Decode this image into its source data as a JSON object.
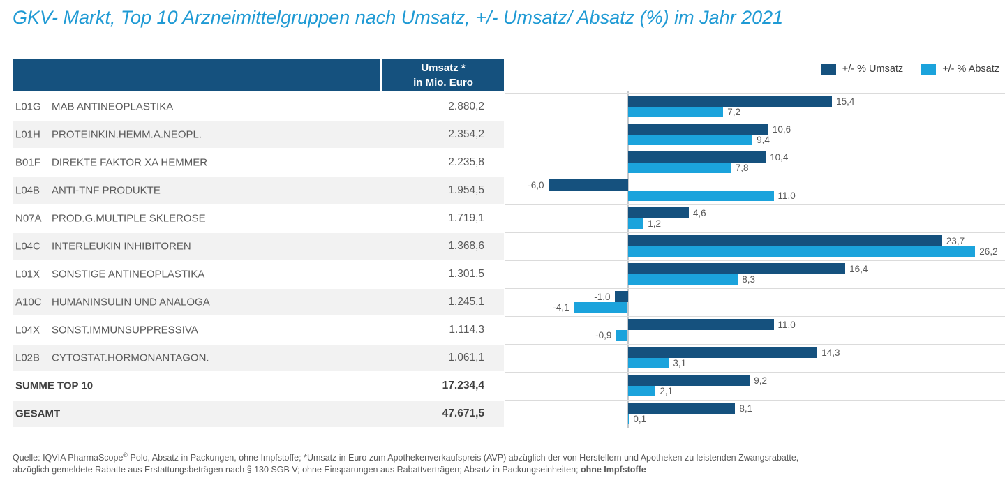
{
  "title": "GKV- Markt, Top 10 Arzneimittelgruppen nach Umsatz, +/- Umsatz/ Absatz (%) im Jahr 2021",
  "colors": {
    "umsatz_bar": "#15517E",
    "absatz_bar": "#1BA3DC",
    "title_blue": "#1F9AD4",
    "row_shade": "#F2F2F2",
    "text_gray": "#595959"
  },
  "table": {
    "header_line1": "Umsatz *",
    "header_line2": "in Mio. Euro"
  },
  "legend": [
    {
      "label": "+/- % Umsatz",
      "color": "#15517E"
    },
    {
      "label": "+/- % Absatz",
      "color": "#1BA3DC"
    }
  ],
  "rows": [
    {
      "code": "L01G",
      "name": "MAB ANTINEOPLASTIKA",
      "umsatz": "2.880,2",
      "pct_umsatz": 15.4,
      "pct_umsatz_label": "15,4",
      "pct_absatz": 7.2,
      "pct_absatz_label": "7,2",
      "bold": false
    },
    {
      "code": "L01H",
      "name": "PROTEINKIN.HEMM.A.NEOPL.",
      "umsatz": "2.354,2",
      "pct_umsatz": 10.6,
      "pct_umsatz_label": "10,6",
      "pct_absatz": 9.4,
      "pct_absatz_label": "9,4",
      "bold": false
    },
    {
      "code": "B01F",
      "name": "DIREKTE FAKTOR XA HEMMER",
      "umsatz": "2.235,8",
      "pct_umsatz": 10.4,
      "pct_umsatz_label": "10,4",
      "pct_absatz": 7.8,
      "pct_absatz_label": "7,8",
      "bold": false
    },
    {
      "code": "L04B",
      "name": "ANTI-TNF PRODUKTE",
      "umsatz": "1.954,5",
      "pct_umsatz": -6.0,
      "pct_umsatz_label": "-6,0",
      "pct_absatz": 11.0,
      "pct_absatz_label": "11,0",
      "bold": false
    },
    {
      "code": "N07A",
      "name": "PROD.G.MULTIPLE SKLEROSE",
      "umsatz": "1.719,1",
      "pct_umsatz": 4.6,
      "pct_umsatz_label": "4,6",
      "pct_absatz": 1.2,
      "pct_absatz_label": "1,2",
      "bold": false
    },
    {
      "code": "L04C",
      "name": "INTERLEUKIN INHIBITOREN",
      "umsatz": "1.368,6",
      "pct_umsatz": 23.7,
      "pct_umsatz_label": "23,7",
      "pct_absatz": 26.2,
      "pct_absatz_label": "26,2",
      "bold": false
    },
    {
      "code": "L01X",
      "name": "SONSTIGE ANTINEOPLASTIKA",
      "umsatz": "1.301,5",
      "pct_umsatz": 16.4,
      "pct_umsatz_label": "16,4",
      "pct_absatz": 8.3,
      "pct_absatz_label": "8,3",
      "bold": false
    },
    {
      "code": "A10C",
      "name": "HUMANINSULIN UND ANALOGA",
      "umsatz": "1.245,1",
      "pct_umsatz": -1.0,
      "pct_umsatz_label": "-1,0",
      "pct_absatz": -4.1,
      "pct_absatz_label": "-4,1",
      "bold": false
    },
    {
      "code": "L04X",
      "name": "SONST.IMMUNSUPPRESSIVA",
      "umsatz": "1.114,3",
      "pct_umsatz": 11.0,
      "pct_umsatz_label": "11,0",
      "pct_absatz": -0.9,
      "pct_absatz_label": "-0,9",
      "bold": false
    },
    {
      "code": "L02B",
      "name": "CYTOSTAT.HORMONANTAGON.",
      "umsatz": "1.061,1",
      "pct_umsatz": 14.3,
      "pct_umsatz_label": "14,3",
      "pct_absatz": 3.1,
      "pct_absatz_label": "3,1",
      "bold": false
    },
    {
      "code": "",
      "name": "SUMME TOP 10",
      "umsatz": "17.234,4",
      "pct_umsatz": 9.2,
      "pct_umsatz_label": "9,2",
      "pct_absatz": 2.1,
      "pct_absatz_label": "2,1",
      "bold": true
    },
    {
      "code": "",
      "name": "GESAMT",
      "umsatz": "47.671,5",
      "pct_umsatz": 8.1,
      "pct_umsatz_label": "8,1",
      "pct_absatz": 0.1,
      "pct_absatz_label": "0,1",
      "bold": true
    }
  ],
  "chart_data": {
    "type": "bar",
    "orientation": "horizontal",
    "title": "GKV- Markt, Top 10 Arzneimittelgruppen nach Umsatz, +/- Umsatz/ Absatz (%) im Jahr 2021",
    "categories": [
      "L01G MAB ANTINEOPLASTIKA",
      "L01H PROTEINKIN.HEMM.A.NEOPL.",
      "B01F DIREKTE FAKTOR XA HEMMER",
      "L04B ANTI-TNF PRODUKTE",
      "N07A PROD.G.MULTIPLE SKLEROSE",
      "L04C INTERLEUKIN INHIBITOREN",
      "L01X SONSTIGE ANTINEOPLASTIKA",
      "A10C HUMANINSULIN UND ANALOGA",
      "L04X SONST.IMMUNSUPPRESSIVA",
      "L02B CYTOSTAT.HORMONANTAGON.",
      "SUMME TOP 10",
      "GESAMT"
    ],
    "umsatz_mio_euro": [
      2880.2,
      2354.2,
      2235.8,
      1954.5,
      1719.1,
      1368.6,
      1301.5,
      1245.1,
      1114.3,
      1061.1,
      17234.4,
      47671.5
    ],
    "series": [
      {
        "name": "+/- % Umsatz",
        "color": "#15517E",
        "values": [
          15.4,
          10.6,
          10.4,
          -6.0,
          4.6,
          23.7,
          16.4,
          -1.0,
          11.0,
          14.3,
          9.2,
          8.1
        ]
      },
      {
        "name": "+/- % Absatz",
        "color": "#1BA3DC",
        "values": [
          7.2,
          9.4,
          7.8,
          11.0,
          1.2,
          26.2,
          8.3,
          -4.1,
          -0.9,
          3.1,
          2.1,
          0.1
        ]
      }
    ],
    "xlim": [
      -8,
      28
    ],
    "axis_at_zero": true,
    "grid": false,
    "legend_position": "top-right",
    "value_labels": "outside-end, comma decimal"
  },
  "footer": {
    "line1_pre": "Quelle: IQVIA PharmaScope",
    "line1_sup": "®",
    "line1_post": " Polo, Absatz in Packungen, ohne Impfstoffe; *Umsatz in Euro zum Apothekenverkaufspreis (AVP) abzüglich der von Herstellern und Apotheken zu leistenden Zwangsrabatte,",
    "line2_text": "abzüglich gemeldete Rabatte aus Erstattungsbeträgen nach § 130 SGB V; ohne Einsparungen aus Rabattverträgen; Absatz in Packungseinheiten; ",
    "line2_bold": "ohne Impfstoffe"
  }
}
